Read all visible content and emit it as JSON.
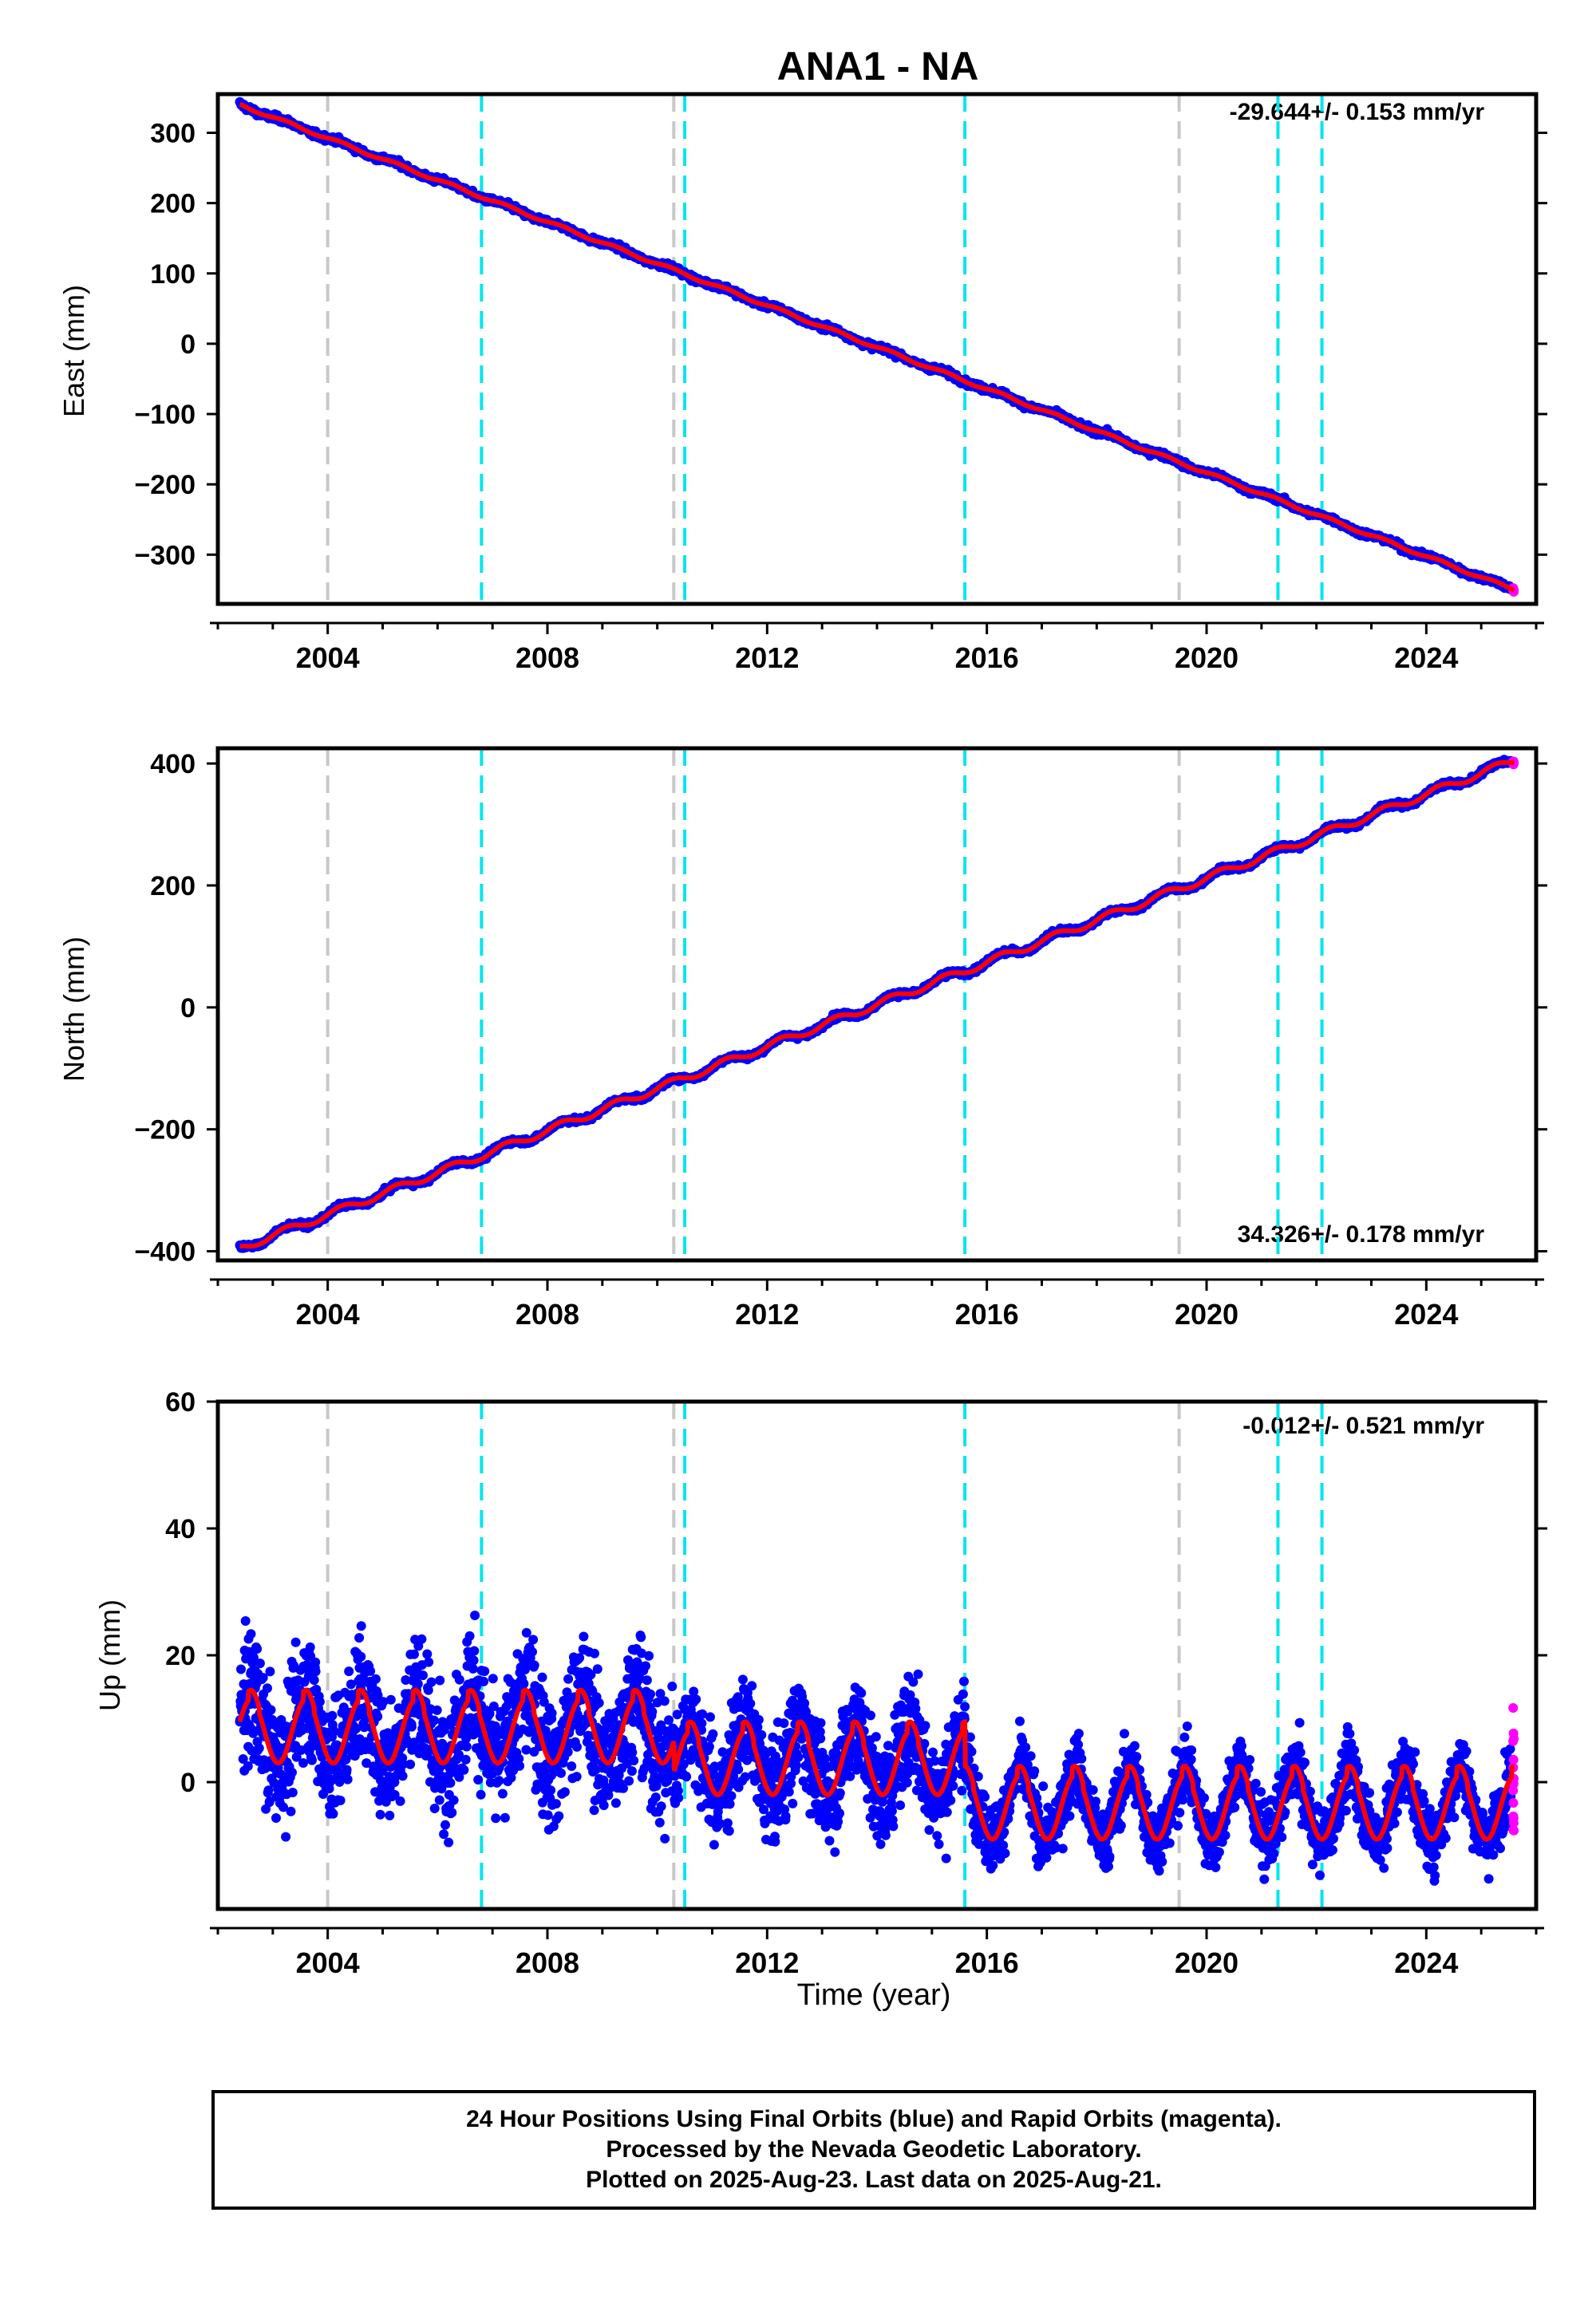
{
  "title": "ANA1 - NA",
  "xlabel": "Time (year)",
  "footer": {
    "line1": "24 Hour Positions Using Final Orbits (blue) and Rapid Orbits (magenta).",
    "line2": "Processed by the Nevada Geodetic Laboratory.",
    "line3": "Plotted on 2025-Aug-23. Last data on 2025-Aug-21."
  },
  "colors": {
    "final_orbits": "#0000ff",
    "rapid_orbits": "#ff00ff",
    "model_fit": "#ff0000",
    "equipment_change_lines": "#00e5ee",
    "other_event_lines": "#c8c8c8"
  },
  "chart_data": [
    {
      "type": "scatter",
      "panel": "east",
      "ylabel": "East (mm)",
      "rate_label": "-29.644+/- 0.153 mm/yr",
      "xlim": [
        2002.0,
        2026.0
      ],
      "ylim": [
        -370,
        355
      ],
      "x_ticks": [
        "2004",
        "2008",
        "2012",
        "2016",
        "2020",
        "2024"
      ],
      "y_ticks": [
        "300",
        "200",
        "100",
        "0",
        "−100",
        "−200",
        "−300"
      ],
      "y_tick_values": [
        300,
        200,
        100,
        0,
        -100,
        -200,
        -300
      ],
      "start": [
        2002.4,
        340
      ],
      "end": [
        2025.6,
        -350
      ],
      "rate_mm_per_yr": -29.644,
      "seasonal_amplitude_mm": 2
    },
    {
      "type": "scatter",
      "panel": "north",
      "ylabel": "North (mm)",
      "rate_label": "34.326+/- 0.178 mm/yr",
      "xlim": [
        2002.0,
        2026.0
      ],
      "ylim": [
        -415,
        425
      ],
      "x_ticks": [
        "2004",
        "2008",
        "2012",
        "2016",
        "2020",
        "2024"
      ],
      "y_ticks": [
        "400",
        "200",
        "0",
        "−200",
        "−400"
      ],
      "y_tick_values": [
        400,
        200,
        0,
        -200,
        -400
      ],
      "start": [
        2002.4,
        -395
      ],
      "end": [
        2025.6,
        405
      ],
      "rate_mm_per_yr": 34.326,
      "seasonal_amplitude_mm": 6
    },
    {
      "type": "scatter",
      "panel": "up",
      "ylabel": "Up (mm)",
      "rate_label": "-0.012+/- 0.521 mm/yr",
      "xlim": [
        2002.0,
        2026.0
      ],
      "ylim": [
        -20,
        60
      ],
      "x_ticks": [
        "2004",
        "2008",
        "2012",
        "2016",
        "2020",
        "2024"
      ],
      "y_ticks": [
        "60",
        "40",
        "20",
        "0"
      ],
      "y_tick_values": [
        60,
        40,
        20,
        0
      ],
      "rate_mm_per_yr": -0.012,
      "mean_level_segments": [
        {
          "from": 2002.4,
          "to": 2010.3,
          "level": 8
        },
        {
          "from": 2010.3,
          "to": 2015.6,
          "level": 3
        },
        {
          "from": 2015.6,
          "to": 2025.6,
          "level": -4
        }
      ],
      "seasonal_amplitude_mm": 5
    }
  ],
  "event_lines": {
    "equipment_change": [
      2006.8,
      2010.5,
      2015.6,
      2021.3,
      2022.1
    ],
    "other": [
      2004.0,
      2010.3,
      2019.5
    ]
  }
}
